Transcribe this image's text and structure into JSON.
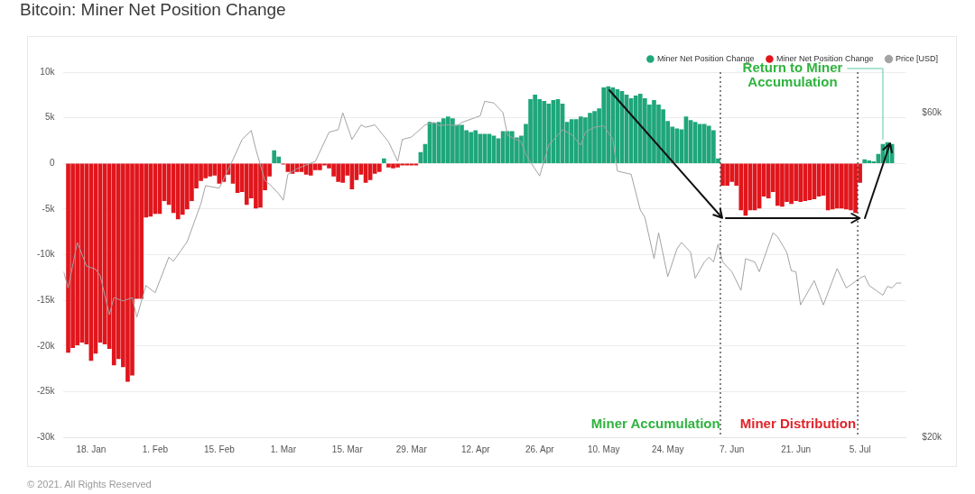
{
  "chart_data": {
    "type": "bar",
    "title": "Bitcoin: Miner Net Position Change",
    "x": [
      "2021-01-13",
      "2021-01-14",
      "2021-01-15",
      "2021-01-16",
      "2021-01-17",
      "2021-01-18",
      "2021-01-19",
      "2021-01-20",
      "2021-01-21",
      "2021-01-22",
      "2021-01-23",
      "2021-01-24",
      "2021-01-25",
      "2021-01-26",
      "2021-01-27",
      "2021-01-28",
      "2021-01-29",
      "2021-01-30",
      "2021-01-31",
      "2021-02-01",
      "2021-02-02",
      "2021-02-03",
      "2021-02-04",
      "2021-02-05",
      "2021-02-06",
      "2021-02-07",
      "2021-02-08",
      "2021-02-09",
      "2021-02-10",
      "2021-02-11",
      "2021-02-12",
      "2021-02-13",
      "2021-02-14",
      "2021-02-15",
      "2021-02-16",
      "2021-02-17",
      "2021-02-18",
      "2021-02-19",
      "2021-02-20",
      "2021-02-21",
      "2021-02-22",
      "2021-02-23",
      "2021-02-24",
      "2021-02-25",
      "2021-02-26",
      "2021-02-27",
      "2021-02-28",
      "2021-03-01",
      "2021-03-02",
      "2021-03-03",
      "2021-03-04",
      "2021-03-05",
      "2021-03-06",
      "2021-03-07",
      "2021-03-08",
      "2021-03-09",
      "2021-03-10",
      "2021-03-11",
      "2021-03-12",
      "2021-03-13",
      "2021-03-14",
      "2021-03-15",
      "2021-03-16",
      "2021-03-17",
      "2021-03-18",
      "2021-03-19",
      "2021-03-20",
      "2021-03-21",
      "2021-03-22",
      "2021-03-23",
      "2021-03-24",
      "2021-03-25",
      "2021-03-26",
      "2021-03-27",
      "2021-03-28",
      "2021-03-29",
      "2021-03-30",
      "2021-03-31",
      "2021-04-01",
      "2021-04-02",
      "2021-04-03",
      "2021-04-04",
      "2021-04-05",
      "2021-04-06",
      "2021-04-07",
      "2021-04-08",
      "2021-04-09",
      "2021-04-10",
      "2021-04-11",
      "2021-04-12",
      "2021-04-13",
      "2021-04-14",
      "2021-04-15",
      "2021-04-16",
      "2021-04-17",
      "2021-04-18",
      "2021-04-19",
      "2021-04-20",
      "2021-04-21",
      "2021-04-22",
      "2021-04-23",
      "2021-04-24",
      "2021-04-25",
      "2021-04-26",
      "2021-04-27",
      "2021-04-28",
      "2021-04-29",
      "2021-04-30",
      "2021-05-01",
      "2021-05-02",
      "2021-05-03",
      "2021-05-04",
      "2021-05-05",
      "2021-05-06",
      "2021-05-07",
      "2021-05-08",
      "2021-05-09",
      "2021-05-10",
      "2021-05-11",
      "2021-05-12",
      "2021-05-13",
      "2021-05-14",
      "2021-05-15",
      "2021-05-16",
      "2021-05-17",
      "2021-05-18",
      "2021-05-19",
      "2021-05-20",
      "2021-05-21",
      "2021-05-22",
      "2021-05-23",
      "2021-05-24",
      "2021-05-25",
      "2021-05-26",
      "2021-05-27",
      "2021-05-28",
      "2021-05-29",
      "2021-05-30",
      "2021-05-31",
      "2021-06-01",
      "2021-06-02",
      "2021-06-03",
      "2021-06-04",
      "2021-06-05",
      "2021-06-06",
      "2021-06-07",
      "2021-06-08",
      "2021-06-09",
      "2021-06-10",
      "2021-06-11",
      "2021-06-12",
      "2021-06-13",
      "2021-06-14",
      "2021-06-15",
      "2021-06-16",
      "2021-06-17",
      "2021-06-18",
      "2021-06-19",
      "2021-06-20",
      "2021-06-21",
      "2021-06-22",
      "2021-06-23",
      "2021-06-24",
      "2021-06-25",
      "2021-06-26",
      "2021-06-27",
      "2021-06-28",
      "2021-06-29",
      "2021-06-30",
      "2021-07-01",
      "2021-07-02",
      "2021-07-03",
      "2021-07-04",
      "2021-07-05",
      "2021-07-06",
      "2021-07-07",
      "2021-07-08",
      "2021-07-09",
      "2021-07-10",
      "2021-07-11",
      "2021-07-12"
    ],
    "series": [
      {
        "name": "Miner Net Position Change",
        "color": "#1fa67a",
        "values": [
          null,
          null,
          null,
          null,
          null,
          null,
          null,
          null,
          null,
          null,
          null,
          null,
          null,
          null,
          null,
          null,
          null,
          null,
          null,
          null,
          null,
          null,
          null,
          null,
          null,
          null,
          null,
          null,
          null,
          null,
          null,
          null,
          null,
          null,
          null,
          null,
          null,
          null,
          null,
          null,
          null,
          null,
          null,
          null,
          null,
          1400,
          700,
          null,
          null,
          null,
          null,
          null,
          null,
          null,
          null,
          null,
          null,
          null,
          null,
          null,
          null,
          null,
          null,
          null,
          null,
          null,
          null,
          null,
          null,
          500,
          null,
          null,
          null,
          null,
          null,
          null,
          null,
          1200,
          2100,
          4500,
          4400,
          4500,
          4900,
          5100,
          4900,
          4200,
          4200,
          3600,
          3400,
          3600,
          3200,
          3200,
          3200,
          3000,
          2700,
          3500,
          3500,
          3500,
          2800,
          3000,
          4300,
          7000,
          7500,
          7000,
          6800,
          6500,
          6900,
          7000,
          6500,
          4500,
          4800,
          4800,
          5100,
          5000,
          5500,
          5700,
          6000,
          8300,
          8400,
          8300,
          8100,
          7900,
          7500,
          7100,
          7400,
          7600,
          7100,
          6400,
          6900,
          6400,
          5900,
          4600,
          4000,
          3800,
          3700,
          5100,
          4700,
          4500,
          4300,
          4300,
          4100,
          3600,
          500,
          null,
          null,
          null,
          null,
          null,
          null,
          null,
          null,
          null,
          null,
          null,
          null,
          null,
          null,
          null,
          null,
          null,
          null,
          null,
          null,
          null,
          null,
          null,
          null,
          null,
          null,
          null,
          null,
          null,
          null,
          null,
          400,
          300,
          200,
          1000,
          2100,
          2300,
          2100
        ]
      },
      {
        "name": "Miner Net Position Change",
        "color": "#e0161c",
        "values": [
          -20700,
          -20200,
          -19900,
          -19600,
          -19800,
          -21600,
          -20800,
          -19600,
          -19800,
          -20300,
          -22100,
          -21400,
          -22300,
          -23900,
          -23200,
          -14800,
          -14800,
          -5900,
          -5800,
          -5500,
          -5500,
          -4100,
          -4500,
          -5400,
          -6100,
          -5600,
          -5000,
          -4100,
          -2700,
          -1900,
          -1600,
          -1400,
          -1300,
          -2200,
          -2000,
          -1200,
          -2200,
          -3200,
          -3100,
          -4500,
          -3800,
          -4900,
          -4800,
          -2900,
          -1400,
          null,
          null,
          -100,
          -900,
          -1100,
          -900,
          -900,
          -1200,
          -1300,
          -700,
          -700,
          -200,
          -500,
          -1400,
          -2000,
          -2100,
          -1300,
          -2800,
          -1800,
          -1200,
          -2100,
          -1800,
          -1100,
          -900,
          null,
          -400,
          -500,
          -400,
          -200,
          -200,
          -200,
          -200,
          null,
          null,
          null,
          null,
          null,
          null,
          null,
          null,
          null,
          null,
          null,
          null,
          null,
          null,
          null,
          null,
          null,
          null,
          null,
          null,
          null,
          null,
          null,
          null,
          null,
          null,
          null,
          null,
          null,
          null,
          null,
          null,
          null,
          null,
          null,
          null,
          null,
          null,
          null,
          null,
          null,
          null,
          null,
          null,
          null,
          null,
          null,
          null,
          null,
          null,
          null,
          null,
          null,
          null,
          null,
          null,
          null,
          null,
          null,
          null,
          null,
          null,
          null,
          null,
          null,
          null,
          -2400,
          -2400,
          -2000,
          -2400,
          -5100,
          -5700,
          -5100,
          -5100,
          -4900,
          -3600,
          -3800,
          -3100,
          -4600,
          -4700,
          -4200,
          -4400,
          -4100,
          -4200,
          -4100,
          -4000,
          -3900,
          -3600,
          -3500,
          -5100,
          -5000,
          -4900,
          -4900,
          -5000,
          -5100,
          -5400,
          -2100,
          null,
          null,
          null,
          null,
          null,
          null,
          null
        ]
      },
      {
        "name": "Price [USD]",
        "type": "line",
        "axis": "y2",
        "color": "#a3a3a3",
        "x": [
          "2021-01-12",
          "2021-01-13",
          "2021-01-15",
          "2021-01-17",
          "2021-01-19",
          "2021-01-20",
          "2021-01-22",
          "2021-01-23",
          "2021-01-25",
          "2021-01-27",
          "2021-01-28",
          "2021-01-30",
          "2021-02-01",
          "2021-02-04",
          "2021-02-05",
          "2021-02-08",
          "2021-02-11",
          "2021-02-12",
          "2021-02-15",
          "2021-02-18",
          "2021-02-20",
          "2021-02-22",
          "2021-02-23",
          "2021-02-25",
          "2021-02-26",
          "2021-02-28",
          "2021-03-01",
          "2021-03-02",
          "2021-03-04",
          "2021-03-08",
          "2021-03-11",
          "2021-03-13",
          "2021-03-14",
          "2021-03-16",
          "2021-03-18",
          "2021-03-19",
          "2021-03-21",
          "2021-03-24",
          "2021-03-26",
          "2021-03-27",
          "2021-03-29",
          "2021-04-01",
          "2021-04-03",
          "2021-04-04",
          "2021-04-06",
          "2021-04-08",
          "2021-04-09",
          "2021-04-12",
          "2021-04-13",
          "2021-04-14",
          "2021-04-16",
          "2021-04-18",
          "2021-04-19",
          "2021-04-22",
          "2021-04-23",
          "2021-04-26",
          "2021-04-28",
          "2021-05-01",
          "2021-05-03",
          "2021-05-05",
          "2021-05-06",
          "2021-05-08",
          "2021-05-10",
          "2021-05-12",
          "2021-05-13",
          "2021-05-16",
          "2021-05-18",
          "2021-05-19",
          "2021-05-21",
          "2021-05-22",
          "2021-05-24",
          "2021-05-26",
          "2021-05-27",
          "2021-05-29",
          "2021-05-30",
          "2021-06-01",
          "2021-06-02",
          "2021-06-03",
          "2021-06-04",
          "2021-06-05",
          "2021-06-07",
          "2021-06-09",
          "2021-06-10",
          "2021-06-12",
          "2021-06-13",
          "2021-06-16",
          "2021-06-17",
          "2021-06-19",
          "2021-06-20",
          "2021-06-21",
          "2021-06-22",
          "2021-06-25",
          "2021-06-27",
          "2021-06-29",
          "2021-06-30",
          "2021-07-02",
          "2021-07-05",
          "2021-07-06",
          "2021-07-07",
          "2021-07-10",
          "2021-07-11",
          "2021-07-12",
          "2021-07-13",
          "2021-07-14"
        ],
        "values": [
          40400,
          38400,
          44000,
          41100,
          40700,
          39900,
          35100,
          37200,
          36800,
          37200,
          34800,
          38700,
          37800,
          42200,
          41700,
          44100,
          48800,
          51000,
          50700,
          54200,
          56700,
          57800,
          55500,
          51600,
          51200,
          50000,
          49200,
          52400,
          53100,
          54000,
          57600,
          57900,
          60000,
          56700,
          58500,
          58200,
          58500,
          56400,
          54000,
          56700,
          57000,
          58500,
          58800,
          58400,
          58500,
          58400,
          58800,
          59400,
          59600,
          61400,
          61200,
          60000,
          57200,
          56400,
          54800,
          52200,
          56000,
          57900,
          57300,
          56000,
          57600,
          58200,
          58400,
          56700,
          52800,
          52400,
          48000,
          47100,
          42000,
          45200,
          39800,
          43200,
          44000,
          42800,
          39600,
          41600,
          42200,
          41600,
          43800,
          41600,
          40400,
          38100,
          42000,
          41600,
          40400,
          45200,
          44700,
          42800,
          40500,
          40400,
          36300,
          39300,
          36300,
          39300,
          40800,
          38400,
          39600,
          39900,
          38700,
          37500,
          38600,
          38400,
          39000,
          39000
        ]
      }
    ],
    "xlim": [
      "2021-01-12",
      "2021-07-15"
    ],
    "xticks": [
      {
        "value": "2021-01-18",
        "label": "18. Jan"
      },
      {
        "value": "2021-02-01",
        "label": "1. Feb"
      },
      {
        "value": "2021-02-15",
        "label": "15. Feb"
      },
      {
        "value": "2021-03-01",
        "label": "1. Mar"
      },
      {
        "value": "2021-03-15",
        "label": "15. Mar"
      },
      {
        "value": "2021-03-29",
        "label": "29. Mar"
      },
      {
        "value": "2021-04-12",
        "label": "12. Apr"
      },
      {
        "value": "2021-04-26",
        "label": "26. Apr"
      },
      {
        "value": "2021-05-10",
        "label": "10. May"
      },
      {
        "value": "2021-05-24",
        "label": "24. May"
      },
      {
        "value": "2021-06-07",
        "label": "7. Jun"
      },
      {
        "value": "2021-06-21",
        "label": "21. Jun"
      },
      {
        "value": "2021-07-05",
        "label": "5. Jul"
      }
    ],
    "ylim": [
      -30000,
      10000
    ],
    "yticks": [
      {
        "value": -30000,
        "label": "-30k"
      },
      {
        "value": -25000,
        "label": "-25k"
      },
      {
        "value": -20000,
        "label": "-20k"
      },
      {
        "value": -15000,
        "label": "-15k"
      },
      {
        "value": -10000,
        "label": "-10k"
      },
      {
        "value": -5000,
        "label": "-5k"
      },
      0,
      {
        "value": 5000,
        "label": "5k"
      },
      {
        "value": 10000,
        "label": "10k"
      }
    ],
    "y2lim": [
      20000,
      65000
    ],
    "y2ticks": [
      {
        "value": 20000,
        "label": "$20k"
      },
      {
        "value": 60000,
        "label": "$60k"
      }
    ],
    "grid": "y",
    "legend": "top right",
    "marker": "none",
    "ref_lines": [
      {
        "axis": "x",
        "value": "2021-06-04T12:00",
        "color": "#333333",
        "line_style": "dotted"
      },
      {
        "axis": "x",
        "value": "2021-07-04T12:00",
        "color": "#333333",
        "line_style": "dotted"
      }
    ],
    "annotations": [
      {
        "text": "Return to Miner Accumulation",
        "x": "2021-07-10",
        "y": 2300
      },
      "Miner Accumulation",
      "Miner Distribution",
      "© 2021. All Rights Reserved"
    ]
  }
}
